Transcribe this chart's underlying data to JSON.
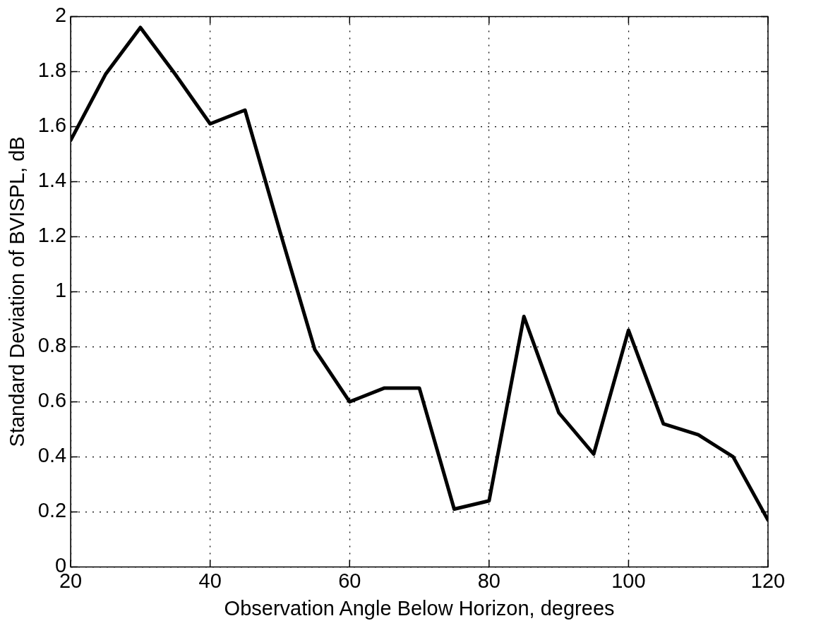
{
  "chart_data": {
    "type": "line",
    "xlabel": "Observation Angle Below Horizon, degrees",
    "ylabel": "Standard Deviation of BVISPL, dB",
    "x": [
      20,
      25,
      30,
      35,
      40,
      45,
      50,
      55,
      60,
      65,
      70,
      75,
      80,
      85,
      90,
      95,
      100,
      105,
      110,
      115,
      120
    ],
    "series": [
      {
        "color": "#000000",
        "values": [
          1.55,
          1.79,
          1.96,
          1.79,
          1.61,
          1.66,
          1.22,
          0.79,
          0.6,
          0.65,
          0.65,
          0.21,
          0.24,
          0.91,
          0.56,
          0.41,
          0.86,
          0.52,
          0.48,
          0.4,
          0.17
        ]
      }
    ],
    "xlim": [
      20,
      120
    ],
    "xticks": [
      20,
      40,
      60,
      80,
      100,
      120
    ],
    "ylim": [
      0,
      2
    ],
    "yticks": [
      0,
      0.2,
      0.4,
      0.6,
      0.8,
      1,
      1.2,
      1.4,
      1.6,
      1.8,
      2
    ],
    "grid": true,
    "legend": false,
    "marker": "none",
    "line_style": "solid"
  }
}
